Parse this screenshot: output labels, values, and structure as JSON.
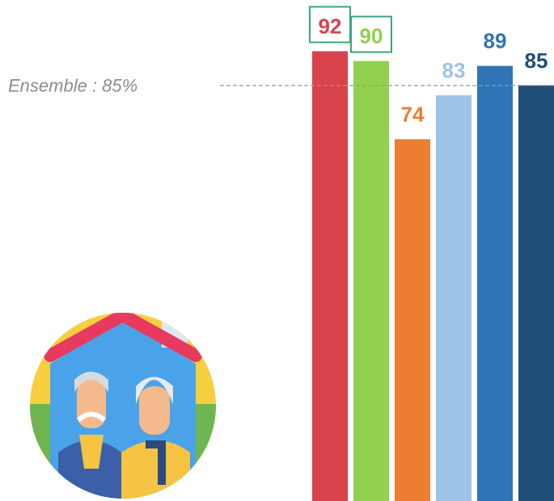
{
  "chart_data": {
    "type": "bar",
    "values": [
      92,
      90,
      74,
      83,
      89,
      85
    ],
    "colors": [
      "#d9434b",
      "#92d04f",
      "#ed7d31",
      "#9dc3e6",
      "#2e75b6",
      "#1f4e79"
    ],
    "boxed_labels": [
      true,
      true,
      false,
      false,
      false,
      false
    ],
    "box_color": "#3aa57a",
    "reference_line": {
      "value": 85,
      "label": "Ensemble : 85%"
    }
  }
}
